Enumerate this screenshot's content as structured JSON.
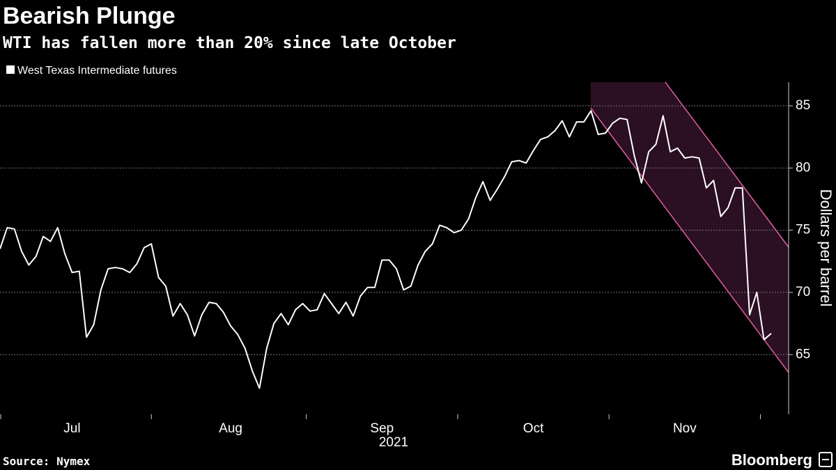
{
  "chart_data": {
    "type": "line",
    "title": "Bearish Plunge",
    "subtitle": "WTI has fallen more than 20% since late October",
    "x_label": "2021",
    "y_label": "Dollars per barrel",
    "categories": [
      null,
      null,
      null,
      null,
      null,
      null,
      null,
      null,
      null,
      null,
      "Jul",
      null,
      null,
      null,
      null,
      null,
      null,
      null,
      null,
      null,
      null,
      null,
      null,
      null,
      null,
      null,
      null,
      null,
      null,
      null,
      null,
      null,
      "Aug",
      null,
      null,
      null,
      null,
      null,
      null,
      null,
      null,
      null,
      null,
      null,
      null,
      null,
      null,
      null,
      null,
      null,
      null,
      null,
      null,
      "Sep",
      null,
      null,
      null,
      null,
      null,
      null,
      null,
      null,
      null,
      null,
      null,
      null,
      null,
      null,
      null,
      null,
      null,
      null,
      null,
      null,
      "Oct",
      null,
      null,
      null,
      null,
      null,
      null,
      null,
      null,
      null,
      null,
      null,
      null,
      null,
      null,
      null,
      null,
      null,
      null,
      null,
      null,
      "Nov",
      null,
      null,
      null,
      null,
      null,
      null,
      null,
      null,
      null,
      null,
      null,
      null
    ],
    "series": [
      {
        "name": "West Texas Intermediate futures",
        "color": "#ffffff",
        "values": [
          73.5,
          75.2,
          75.1,
          73.3,
          72.2,
          72.9,
          74.5,
          74.1,
          75.2,
          73.1,
          71.6,
          71.7,
          66.4,
          67.4,
          70.2,
          71.9,
          72.0,
          71.9,
          71.6,
          72.3,
          73.6,
          73.9,
          71.2,
          70.5,
          68.1,
          69.1,
          68.2,
          66.5,
          68.2,
          69.2,
          69.1,
          68.4,
          67.3,
          66.6,
          65.5,
          63.7,
          62.3,
          65.5,
          67.5,
          68.3,
          67.4,
          68.6,
          69.1,
          68.5,
          68.6,
          69.9,
          69.1,
          68.3,
          69.2,
          68.1,
          69.7,
          70.4,
          70.4,
          72.6,
          72.6,
          71.9,
          70.2,
          70.5,
          72.2,
          73.3,
          73.9,
          75.4,
          75.2,
          74.8,
          75.0,
          75.9,
          77.6,
          78.9,
          77.4,
          78.3,
          79.3,
          80.5,
          80.6,
          80.4,
          81.4,
          82.3,
          82.5,
          83.0,
          83.8,
          82.5,
          83.7,
          83.7,
          84.6,
          82.7,
          82.8,
          83.6,
          84.0,
          83.9,
          81.0,
          78.8,
          81.3,
          81.9,
          84.2,
          81.3,
          81.6,
          80.8,
          80.9,
          80.8,
          78.4,
          79.0,
          76.1,
          76.8,
          78.4,
          78.4,
          68.2,
          70.0,
          66.2,
          66.7
        ]
      }
    ],
    "ylim": [
      60.2,
      86.9
    ],
    "yticks": [
      65,
      70,
      75,
      80,
      85
    ],
    "grid": true,
    "legend": "top-left"
  },
  "footer": {
    "source": "Source: Nymex",
    "brand": "Bloomberg"
  }
}
